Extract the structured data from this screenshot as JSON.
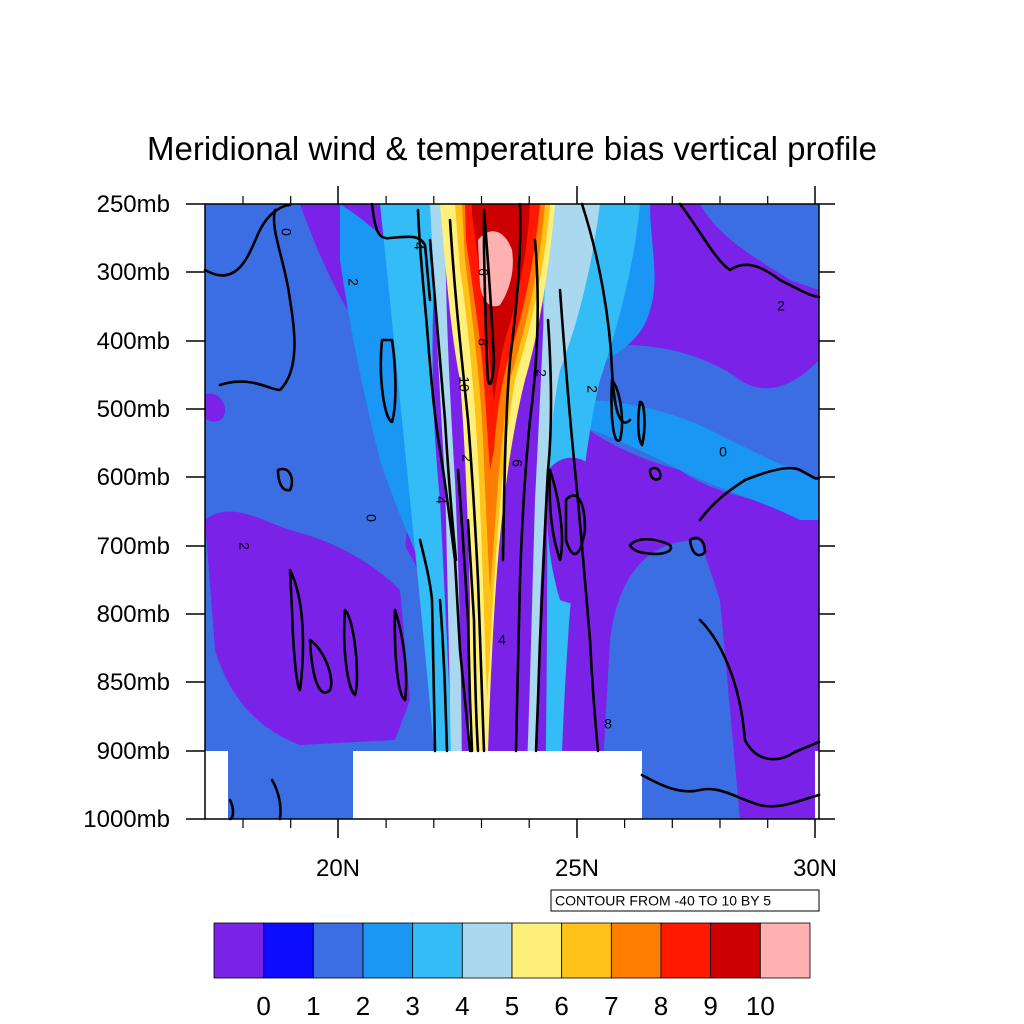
{
  "chart_data": {
    "type": "heatmap",
    "title": "Meridional wind & temperature bias vertical profile",
    "xlabel": "",
    "ylabel": "",
    "x_ticks": [
      "20N",
      "25N",
      "30N"
    ],
    "y_ticks": [
      "250mb",
      "300mb",
      "400mb",
      "500mb",
      "600mb",
      "700mb",
      "800mb",
      "850mb",
      "900mb",
      "1000mb"
    ],
    "info_label": "CONTOUR FROM -40 TO 10 BY 5",
    "colorbar": {
      "colors": [
        "#7b22e8",
        "#0c0cff",
        "#3b6ee3",
        "#1a96f5",
        "#33bcf5",
        "#a9d8ef",
        "#fff07a",
        "#ffc219",
        "#ff7d00",
        "#ff1900",
        "#cc0000",
        "#ffb0b0"
      ],
      "labels": [
        "0",
        "1",
        "2",
        "3",
        "4",
        "5",
        "6",
        "7",
        "8",
        "9",
        "10"
      ]
    },
    "contour_labels": [
      "0",
      "2",
      "4",
      "6",
      "8",
      "10",
      "2",
      "2",
      "2",
      "0",
      "0",
      "2",
      "4",
      "6",
      "8",
      "2",
      "4"
    ],
    "masked_regions": [
      "terrain below 900mb",
      "terrain below 900mb (left edge)"
    ]
  }
}
